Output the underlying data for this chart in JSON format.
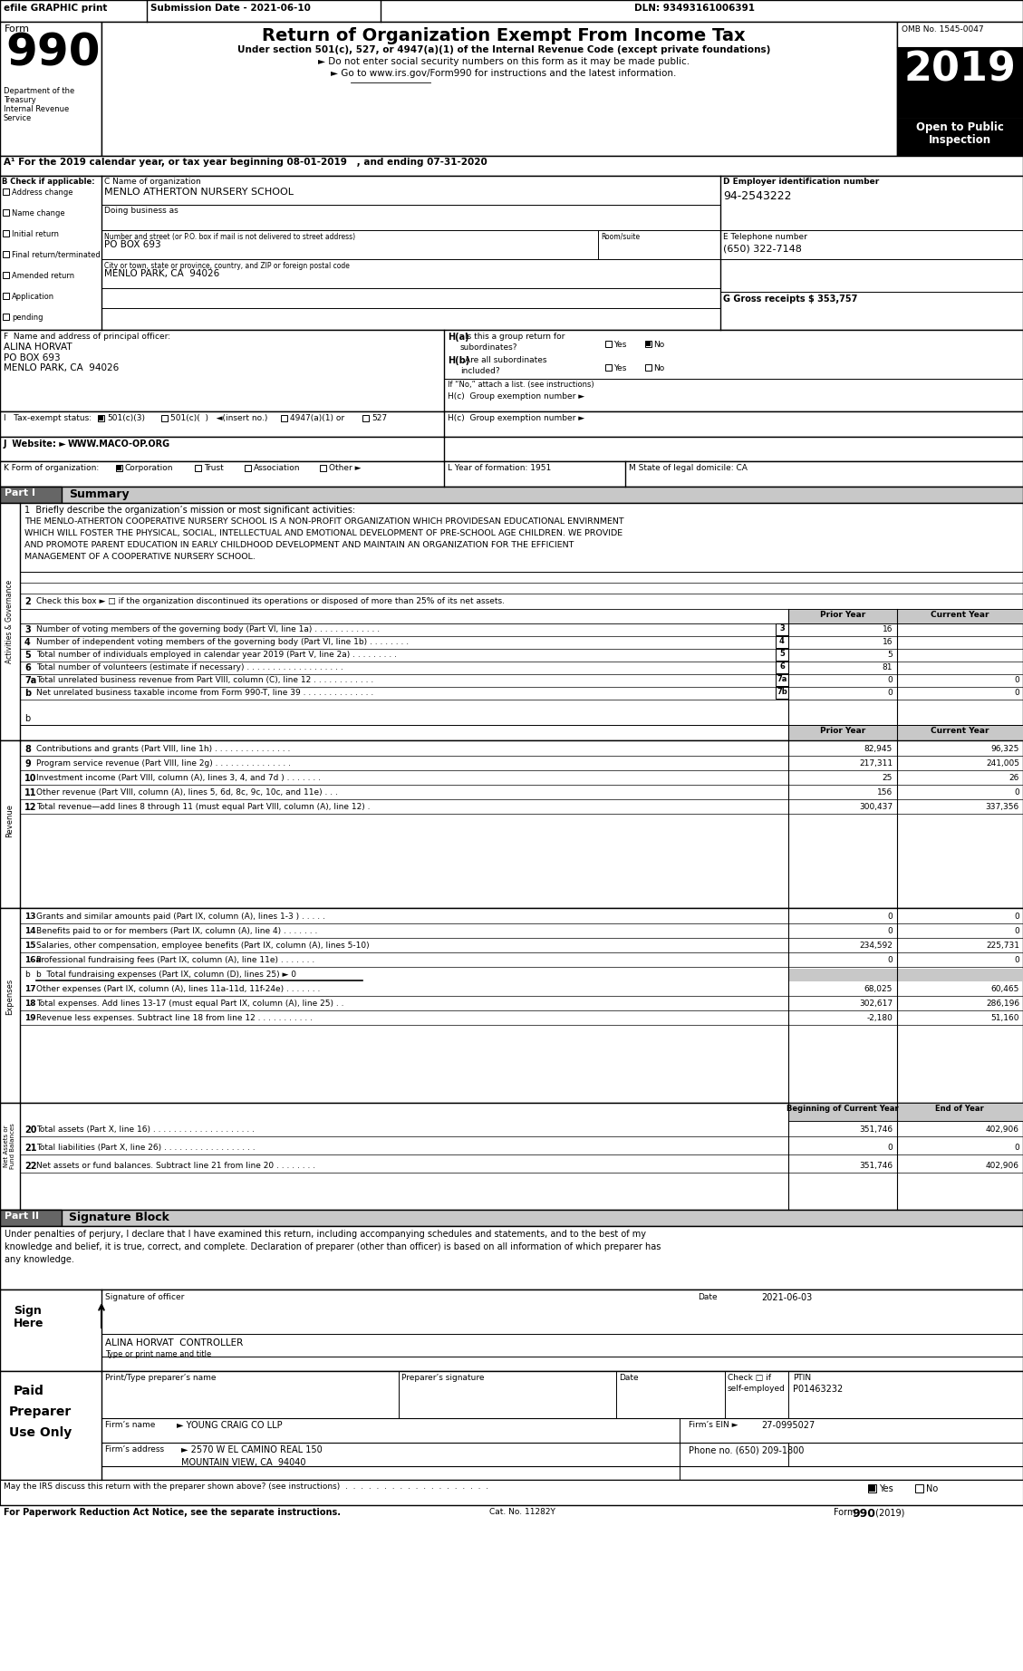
{
  "top_bar": {
    "efile": "efile GRAPHIC print",
    "submission": "Submission Date - 2021-06-10",
    "dln": "DLN: 93493161006391"
  },
  "header": {
    "title": "Return of Organization Exempt From Income Tax",
    "subtitle1": "Under section 501(c), 527, or 4947(a)(1) of the Internal Revenue Code (except private foundations)",
    "subtitle2": "► Do not enter social security numbers on this form as it may be made public.",
    "subtitle3": "► Go to www.irs.gov/Form990 for instructions and the latest information.",
    "omb": "OMB No. 1545-0047",
    "year": "2019",
    "open": "Open to Public",
    "inspection": "Inspection"
  },
  "part_a": {
    "label": "A¹ For the 2019 calendar year, or tax year beginning 08-01-2019   , and ending 07-31-2020"
  },
  "checkboxes_b": {
    "items": [
      "Address change",
      "Name change",
      "Initial return",
      "Final return/terminated",
      "Amended return",
      "Application",
      "pending"
    ]
  },
  "org_info": {
    "c_name": "MENLO ATHERTON NURSERY SCHOOL",
    "street": "PO BOX 693",
    "city": "MENLO PARK, CA  94026"
  },
  "employer_id": {
    "ein": "94-2543222",
    "phone": "(650) 322-7148",
    "gross": "G Gross receipts $ 353,757"
  },
  "principal": {
    "name": "ALINA HORVAT",
    "po": "PO BOX 693",
    "city": "MENLO PARK, CA  94026"
  },
  "tax_status_items": [
    "☑ 501(c)(3)",
    "□ 501(c)(  ) ◄(insert no.)",
    "□ 4947(a)(1) or",
    "□ 527"
  ],
  "website_url": "WWW.MACO-OP.ORG",
  "form_org_items": [
    "☑ Corporation",
    "□ Trust",
    "□ Association",
    "□ Other ►"
  ],
  "year_formed": "L Year of formation: 1951",
  "state_domicile": "M State of legal domicile: CA",
  "mission": "THE MENLO-ATHERTON COOPERATIVE NURSERY SCHOOL IS A NON-PROFIT ORGANIZATION WHICH PROVIDESAN EDUCATIONAL ENVIRNMENT\nWHICH WILL FOSTER THE PHYSICAL, SOCIAL, INTELLECTUAL AND EMOTIONAL DEVELOPMENT OF PRE-SCHOOL AGE CHILDREN. WE PROVIDE\nAND PROMOTE PARENT EDUCATION IN EARLY CHILDHOOD DEVELOPMENT AND MAINTAIN AN ORGANIZATION FOR THE EFFICIENT\nMANAGEMENT OF A COOPERATIVE NURSERY SCHOOL.",
  "governance_lines": [
    {
      "num": "2",
      "text": "Check this box ► □ if the organization discontinued its operations or disposed of more than 25% of its net assets.",
      "lnum": "",
      "prior": "",
      "current": ""
    },
    {
      "num": "3",
      "text": "Number of voting members of the governing body (Part VI, line 1a) . . . . . . . . . . . . .",
      "lnum": "3",
      "prior": "16",
      "current": ""
    },
    {
      "num": "4",
      "text": "Number of independent voting members of the governing body (Part VI, line 1b) . . . . . . . .",
      "lnum": "4",
      "prior": "16",
      "current": ""
    },
    {
      "num": "5",
      "text": "Total number of individuals employed in calendar year 2019 (Part V, line 2a) . . . . . . . . .",
      "lnum": "5",
      "prior": "5",
      "current": ""
    },
    {
      "num": "6",
      "text": "Total number of volunteers (estimate if necessary) . . . . . . . . . . . . . . . . . . .",
      "lnum": "6",
      "prior": "81",
      "current": ""
    },
    {
      "num": "7a",
      "text": "Total unrelated business revenue from Part VIII, column (C), line 12 . . . . . . . . . . . .",
      "lnum": "7a",
      "prior": "0",
      "current": "0"
    },
    {
      "num": "b",
      "text": "Net unrelated business taxable income from Form 990-T, line 39 . . . . . . . . . . . . . .",
      "lnum": "7b",
      "prior": "0",
      "current": "0"
    }
  ],
  "revenue_lines": [
    {
      "num": "8",
      "text": "Contributions and grants (Part VIII, line 1h) . . . . . . . . . . . . . . .",
      "prior": "82,945",
      "current": "96,325"
    },
    {
      "num": "9",
      "text": "Program service revenue (Part VIII, line 2g) . . . . . . . . . . . . . . .",
      "prior": "217,311",
      "current": "241,005"
    },
    {
      "num": "10",
      "text": "Investment income (Part VIII, column (A), lines 3, 4, and 7d ) . . . . . . .",
      "prior": "25",
      "current": "26"
    },
    {
      "num": "11",
      "text": "Other revenue (Part VIII, column (A), lines 5, 6d, 8c, 9c, 10c, and 11e) . . .",
      "prior": "156",
      "current": "0"
    },
    {
      "num": "12",
      "text": "Total revenue—add lines 8 through 11 (must equal Part VIII, column (A), line 12) .",
      "prior": "300,437",
      "current": "337,356"
    }
  ],
  "expense_lines": [
    {
      "num": "13",
      "text": "Grants and similar amounts paid (Part IX, column (A), lines 1-3 ) . . . . .",
      "prior": "0",
      "current": "0"
    },
    {
      "num": "14",
      "text": "Benefits paid to or for members (Part IX, column (A), line 4) . . . . . . .",
      "prior": "0",
      "current": "0"
    },
    {
      "num": "15",
      "text": "Salaries, other compensation, employee benefits (Part IX, column (A), lines 5-10)",
      "prior": "234,592",
      "current": "225,731"
    },
    {
      "num": "16a",
      "text": "Professional fundraising fees (Part IX, column (A), line 11e) . . . . . . .",
      "prior": "0",
      "current": "0"
    },
    {
      "num": "b",
      "text": "b  Total fundraising expenses (Part IX, column (D), lines 25) ► 0",
      "prior": "",
      "current": "",
      "gray": true
    },
    {
      "num": "17",
      "text": "Other expenses (Part IX, column (A), lines 11a-11d, 11f-24e) . . . . . . .",
      "prior": "68,025",
      "current": "60,465"
    },
    {
      "num": "18",
      "text": "Total expenses. Add lines 13-17 (must equal Part IX, column (A), line 25) . .",
      "prior": "302,617",
      "current": "286,196"
    },
    {
      "num": "19",
      "text": "Revenue less expenses. Subtract line 18 from line 12 . . . . . . . . . . .",
      "prior": "-2,180",
      "current": "51,160"
    }
  ],
  "netasset_lines": [
    {
      "num": "20",
      "text": "Total assets (Part X, line 16) . . . . . . . . . . . . . . . . . . . .",
      "boc": "351,746",
      "eoy": "402,906"
    },
    {
      "num": "21",
      "text": "Total liabilities (Part X, line 26) . . . . . . . . . . . . . . . . . .",
      "boc": "0",
      "eoy": "0"
    },
    {
      "num": "22",
      "text": "Net assets or fund balances. Subtract line 21 from line 20 . . . . . . . .",
      "boc": "351,746",
      "eoy": "402,906"
    }
  ],
  "part2_text": "Under penalties of perjury, I declare that I have examined this return, including accompanying schedules and statements, and to the best of my\nknowledge and belief, it is true, correct, and complete. Declaration of preparer (other than officer) is based on all information of which preparer has\nany knowledge.",
  "sig_date": "2021-06-03",
  "sig_name": "ALINA HORVAT  CONTROLLER",
  "ptin": "P01463232",
  "firm_name": "YOUNG CRAIG CO LLP",
  "firm_ein": "27-0995027",
  "firm_addr": "2570 W EL CAMINO REAL 150",
  "firm_city": "MOUNTAIN VIEW, CA  94040",
  "phone": "(650) 209-1800",
  "cat_no": "Cat. No. 11282Y"
}
